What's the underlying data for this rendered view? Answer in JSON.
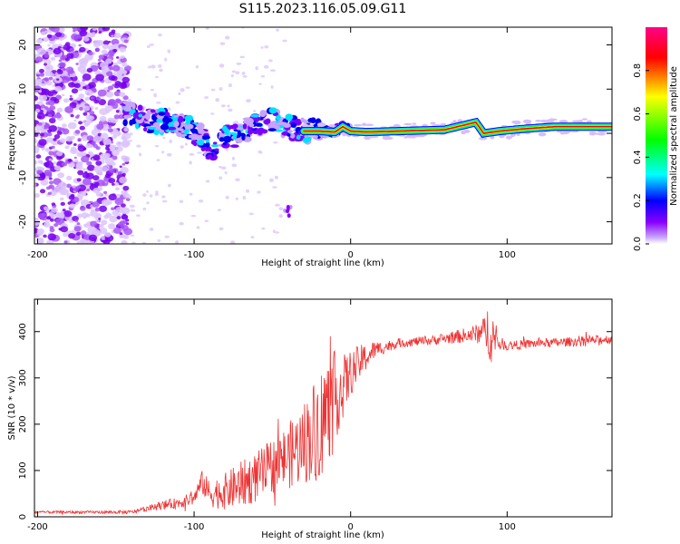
{
  "chart_data": [
    {
      "type": "heatmap",
      "title": "S115.2023.116.05.09.G11",
      "xlabel": "Height of straight line (km)",
      "ylabel": "Frequency (Hz)",
      "xlim": [
        -202,
        167
      ],
      "ylim": [
        -25,
        24
      ],
      "xticks": [
        -200,
        -100,
        0,
        100
      ],
      "yticks": [
        20,
        10,
        0,
        -10,
        -20
      ],
      "xtick_labels": [
        "-200",
        "-100",
        "0",
        "100"
      ],
      "ytick_labels": [
        "20",
        "10",
        "0",
        "-10",
        "-20"
      ],
      "colorbar": {
        "label": "Normalized spectral amplitude",
        "range": [
          0.0,
          1.0
        ],
        "ticks": [
          0.0,
          0.2,
          0.4,
          0.6,
          0.8
        ],
        "tick_labels": [
          "0.0",
          "0.2",
          "0.4",
          "0.6",
          "0.8"
        ],
        "colors": [
          "#ffffff",
          "#8800ff",
          "#0000ff",
          "#00ffff",
          "#00ff00",
          "#ffff00",
          "#ff0000",
          "#ff00aa"
        ]
      },
      "ridge": {
        "x": [
          -145,
          -135,
          -125,
          -115,
          -105,
          -95,
          -90,
          -80,
          -70,
          -60,
          -50,
          -40,
          -30,
          -20,
          -10,
          -5,
          0,
          10,
          30,
          60,
          80,
          85,
          95,
          110,
          130,
          167
        ],
        "frequency": [
          5,
          3.5,
          2.5,
          3,
          1.5,
          -1,
          -4,
          -1,
          0,
          2,
          3,
          1.5,
          0.5,
          0.5,
          0.3,
          1.5,
          0.5,
          0.3,
          0.5,
          0.8,
          2.5,
          0,
          0.5,
          1,
          1.5,
          1.5
        ]
      }
    },
    {
      "type": "line",
      "xlabel": "Height of straight line (km)",
      "ylabel": "SNR (10 * v/v)",
      "xlim": [
        -202,
        167
      ],
      "ylim": [
        0,
        470
      ],
      "xticks": [
        -200,
        -100,
        0,
        100
      ],
      "yticks": [
        0,
        100,
        200,
        300,
        400
      ],
      "xtick_labels": [
        "-200",
        "-100",
        "0",
        "100"
      ],
      "ytick_labels": [
        "0",
        "100",
        "200",
        "300",
        "400"
      ],
      "series": [
        {
          "name": "SNR",
          "color": "#ee3333",
          "x": [
            -202,
            -180,
            -160,
            -140,
            -130,
            -120,
            -110,
            -100,
            -95,
            -90,
            -80,
            -70,
            -60,
            -50,
            -40,
            -30,
            -20,
            -15,
            -10,
            -5,
            0,
            5,
            10,
            15,
            20,
            25,
            30,
            40,
            50,
            60,
            70,
            80,
            85,
            88,
            90,
            92,
            95,
            100,
            110,
            120,
            130,
            140,
            150,
            160,
            167
          ],
          "y": [
            10,
            10,
            10,
            10,
            18,
            25,
            30,
            40,
            75,
            50,
            55,
            70,
            85,
            110,
            130,
            160,
            200,
            230,
            260,
            280,
            310,
            330,
            345,
            360,
            365,
            370,
            375,
            378,
            380,
            385,
            390,
            395,
            400,
            405,
            400,
            380,
            375,
            370,
            372,
            375,
            376,
            378,
            380,
            382,
            385
          ],
          "noise": [
            3,
            3,
            3,
            4,
            6,
            10,
            12,
            15,
            25,
            30,
            40,
            50,
            55,
            60,
            70,
            90,
            120,
            120,
            100,
            70,
            50,
            40,
            30,
            20,
            15,
            12,
            10,
            10,
            10,
            12,
            15,
            20,
            30,
            60,
            70,
            40,
            15,
            10,
            10,
            10,
            10,
            10,
            10,
            10,
            10
          ]
        }
      ]
    }
  ]
}
